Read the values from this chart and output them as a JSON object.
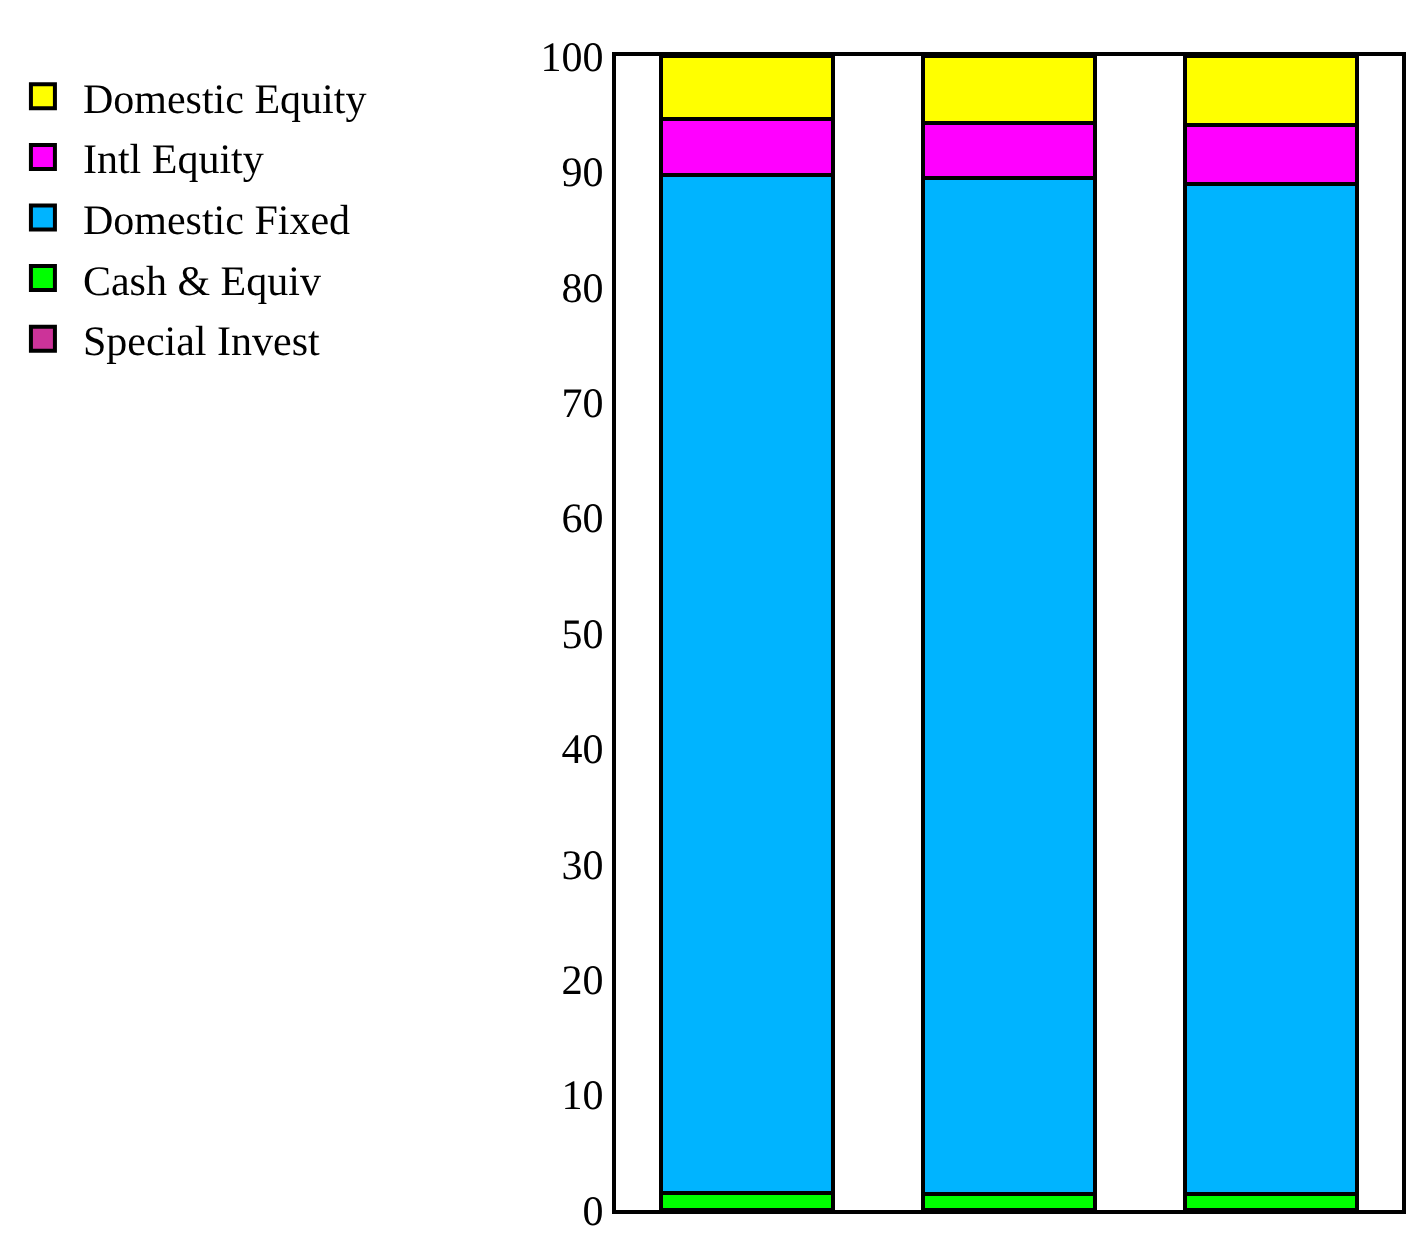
{
  "chart_data": {
    "type": "bar",
    "stacked": true,
    "categories": [
      null,
      null,
      null
    ],
    "series": [
      {
        "name": "Special Invest",
        "color": "#cc3399",
        "values": [
          0,
          0,
          0
        ]
      },
      {
        "name": "Cash & Equiv",
        "color": "#00ff00",
        "values": [
          1.5,
          1.4,
          1.4
        ]
      },
      {
        "name": "Domestic Fixed",
        "color": "#00b4ff",
        "values": [
          88.2,
          88.0,
          87.5
        ]
      },
      {
        "name": "Intl Equity",
        "color": "#ff00ff",
        "values": [
          4.8,
          4.8,
          5.1
        ]
      },
      {
        "name": "Domestic Equity",
        "color": "#ffff00",
        "values": [
          5.5,
          5.8,
          6.0
        ]
      }
    ],
    "ylim": [
      0,
      100
    ],
    "yticks": [
      0,
      10,
      20,
      30,
      40,
      50,
      60,
      70,
      80,
      90,
      100
    ],
    "grid": false,
    "legend": "top left",
    "tick_labels": "y"
  }
}
